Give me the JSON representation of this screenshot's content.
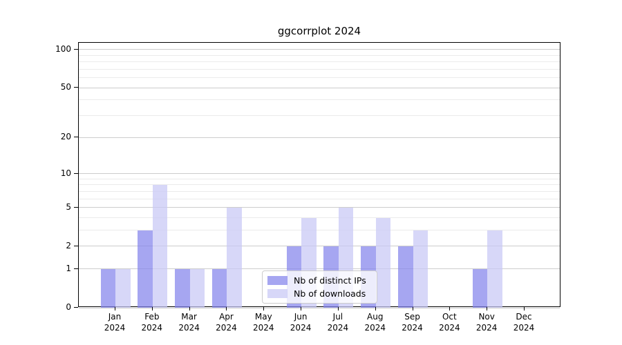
{
  "title": "ggcorrplot 2024",
  "colors": {
    "series_ips": "rgba(131,131,236,0.72)",
    "series_downloads": "rgba(199,199,245,0.72)",
    "series_ips_flat": "#a8a8f2",
    "series_downloads_flat": "#d8d8f8",
    "grid_major": "#cccccc",
    "grid_minor": "#ebebeb",
    "spine": "#000000",
    "legend_border": "#cccccc"
  },
  "legend": {
    "entries": [
      {
        "label": "Nb of distinct IPs"
      },
      {
        "label": "Nb of downloads"
      }
    ]
  },
  "chart_data": {
    "type": "bar",
    "title": "ggcorrplot 2024",
    "xlabel": "",
    "ylabel": "",
    "year_label": "2024",
    "categories": [
      "Jan",
      "Feb",
      "Mar",
      "Apr",
      "May",
      "Jun",
      "Jul",
      "Aug",
      "Sep",
      "Oct",
      "Nov",
      "Dec"
    ],
    "series": [
      {
        "name": "Nb of distinct IPs",
        "color": "rgba(131,131,236,0.72)",
        "values": [
          1,
          3,
          1,
          1,
          0,
          2,
          2,
          2,
          2,
          0,
          1,
          0
        ]
      },
      {
        "name": "Nb of downloads",
        "color": "rgba(199,199,245,0.72)",
        "values": [
          1,
          8,
          1,
          5,
          0,
          4,
          5,
          4,
          3,
          0,
          3,
          0
        ]
      }
    ],
    "yscale": "log1p",
    "ylim": [
      0,
      113
    ],
    "yticks_major": [
      0,
      1,
      2,
      5,
      10,
      20,
      50,
      100
    ],
    "yticks_minor": [
      3,
      4,
      6,
      7,
      8,
      9,
      30,
      40,
      60,
      70,
      80,
      90
    ],
    "grid": true,
    "legend_position": "lower center-left inside"
  }
}
